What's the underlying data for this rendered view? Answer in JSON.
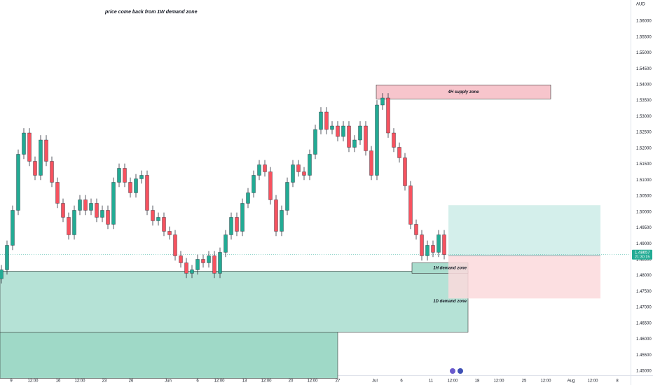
{
  "chart_data": {
    "type": "candlestick",
    "title": "price come back from 1W demand zone",
    "currency": "AUD",
    "xlim": [
      0,
      270
    ],
    "ylim": [
      1.4478,
      1.5666
    ],
    "yticks": [
      {
        "value": 1.45,
        "label": "1.45000"
      },
      {
        "value": 1.455,
        "label": "1.45500"
      },
      {
        "value": 1.46,
        "label": "1.46000"
      },
      {
        "value": 1.465,
        "label": "1.46500"
      },
      {
        "value": 1.47,
        "label": "1.47000"
      },
      {
        "value": 1.475,
        "label": "1.47500"
      },
      {
        "value": 1.48,
        "label": "1.48000"
      },
      {
        "value": 1.485,
        "label": "1.48500"
      },
      {
        "value": 1.49,
        "label": "1.49000"
      },
      {
        "value": 1.495,
        "label": "1.49500"
      },
      {
        "value": 1.5,
        "label": "1.50000"
      },
      {
        "value": 1.505,
        "label": "1.50500"
      },
      {
        "value": 1.51,
        "label": "1.51000"
      },
      {
        "value": 1.515,
        "label": "1.51500"
      },
      {
        "value": 1.52,
        "label": "1.52000"
      },
      {
        "value": 1.525,
        "label": "1.52500"
      },
      {
        "value": 1.53,
        "label": "1.53000"
      },
      {
        "value": 1.535,
        "label": "1.53500"
      },
      {
        "value": 1.54,
        "label": "1.54000"
      },
      {
        "value": 1.545,
        "label": "1.54500"
      },
      {
        "value": 1.55,
        "label": "1.55000"
      },
      {
        "value": 1.555,
        "label": "1.55500"
      },
      {
        "value": 1.56,
        "label": "1.56000"
      }
    ],
    "xticks": [
      {
        "value": 4.8,
        "label": "9"
      },
      {
        "value": 14.1,
        "label": "12:00"
      },
      {
        "value": 24.9,
        "label": "16"
      },
      {
        "value": 34.2,
        "label": "12:00"
      },
      {
        "value": 44.7,
        "label": "23"
      },
      {
        "value": 56.1,
        "label": "26"
      },
      {
        "value": 72,
        "label": "Jun"
      },
      {
        "value": 84.6,
        "label": "6"
      },
      {
        "value": 93.9,
        "label": "12:00"
      },
      {
        "value": 104.7,
        "label": "13"
      },
      {
        "value": 114,
        "label": "12:00"
      },
      {
        "value": 124.5,
        "label": "20"
      },
      {
        "value": 133.8,
        "label": "12:00"
      },
      {
        "value": 144.6,
        "label": "27"
      },
      {
        "value": 160.5,
        "label": "Jul"
      },
      {
        "value": 171.9,
        "label": "6"
      },
      {
        "value": 184.5,
        "label": "11"
      },
      {
        "value": 193.8,
        "label": "12:00"
      },
      {
        "value": 204.3,
        "label": "18"
      },
      {
        "value": 213.6,
        "label": "12:00"
      },
      {
        "value": 224.4,
        "label": "25"
      },
      {
        "value": 233.7,
        "label": "12:00"
      },
      {
        "value": 244.5,
        "label": "Aug"
      },
      {
        "value": 253.8,
        "label": "12:00"
      },
      {
        "value": 264.3,
        "label": "8"
      }
    ],
    "up_color": "#22ab94",
    "down_color": "#f7525f",
    "x": [
      0.6,
      3,
      5.4,
      7.8,
      10.2,
      12.6,
      15,
      17.4,
      19.8,
      22.2,
      24.6,
      27,
      29.4,
      31.8,
      34.2,
      36.6,
      39,
      41.4,
      43.8,
      46.2,
      48.6,
      51,
      53.4,
      55.8,
      58.2,
      60.6,
      63,
      65.4,
      67.8,
      70.2,
      72.6,
      75,
      77.4,
      79.8,
      82.2,
      84.6,
      87,
      89.4,
      91.8,
      94.2,
      96.6,
      99,
      101.4,
      103.8,
      106.2,
      108.6,
      111,
      113.4,
      115.8,
      118.2,
      120.6,
      123,
      125.4,
      127.8,
      130.2,
      132.6,
      135,
      137.4,
      139.8,
      142.2,
      144.6,
      147,
      149.4,
      151.8,
      154.2,
      156.6,
      159,
      161.4,
      163.8,
      166.2,
      168.6,
      171,
      173.4,
      175.8,
      178.2,
      180.6,
      183,
      185.4,
      187.8,
      190.2
    ],
    "open": [
      1.479,
      1.4818,
      1.4895,
      1.5005,
      1.5181,
      1.5248,
      1.5159,
      1.5115,
      1.5226,
      1.5159,
      1.5093,
      1.5027,
      1.4983,
      1.4928,
      1.5005,
      1.5038,
      1.5005,
      1.5027,
      1.4983,
      1.5005,
      1.4961,
      1.5093,
      1.5137,
      1.5093,
      1.506,
      1.5104,
      1.5115,
      1.5005,
      1.4972,
      1.4983,
      1.4939,
      1.4928,
      1.4862,
      1.484,
      1.4807,
      1.4818,
      1.4851,
      1.484,
      1.4862,
      1.4807,
      1.4873,
      1.4928,
      1.4983,
      1.4939,
      1.5027,
      1.506,
      1.5115,
      1.5148,
      1.5126,
      1.5038,
      1.4939,
      1.5005,
      1.5093,
      1.5148,
      1.5126,
      1.5115,
      1.5181,
      1.5259,
      1.5314,
      1.5259,
      1.527,
      1.5237,
      1.527,
      1.5203,
      1.5226,
      1.527,
      1.5192,
      1.5115,
      1.5336,
      1.5358,
      1.5248,
      1.5203,
      1.517,
      1.5082,
      1.4961,
      1.4928,
      1.4862,
      1.4895,
      1.4873,
      1.4928
    ],
    "high": [
      1.4833,
      1.491,
      1.502,
      1.5196,
      1.5263,
      1.5263,
      1.5174,
      1.5241,
      1.5241,
      1.5174,
      1.5108,
      1.5042,
      1.4998,
      1.502,
      1.5053,
      1.5053,
      1.5042,
      1.5042,
      1.502,
      1.502,
      1.5108,
      1.5152,
      1.5152,
      1.5108,
      1.5119,
      1.513,
      1.513,
      1.502,
      1.4998,
      1.4998,
      1.4954,
      1.4943,
      1.4877,
      1.4855,
      1.4833,
      1.4866,
      1.4866,
      1.4877,
      1.4877,
      1.4888,
      1.4943,
      1.4998,
      1.4998,
      1.5042,
      1.5075,
      1.513,
      1.5163,
      1.5163,
      1.5141,
      1.5053,
      1.502,
      1.5108,
      1.5163,
      1.5163,
      1.5141,
      1.5196,
      1.5274,
      1.5329,
      1.5329,
      1.5285,
      1.5285,
      1.5285,
      1.5285,
      1.5241,
      1.5285,
      1.5285,
      1.5207,
      1.5351,
      1.5373,
      1.5373,
      1.5263,
      1.5218,
      1.5185,
      1.5097,
      1.4976,
      1.4943,
      1.491,
      1.491,
      1.4943,
      1.4943
    ],
    "low": [
      1.4775,
      1.4803,
      1.488,
      1.499,
      1.5166,
      1.5144,
      1.51,
      1.51,
      1.5144,
      1.5078,
      1.5012,
      1.4968,
      1.4913,
      1.4913,
      1.499,
      1.499,
      1.499,
      1.4968,
      1.4968,
      1.4946,
      1.4946,
      1.5078,
      1.5078,
      1.5045,
      1.5045,
      1.5089,
      1.499,
      1.4957,
      1.4957,
      1.4924,
      1.4913,
      1.4847,
      1.4825,
      1.4792,
      1.4792,
      1.4803,
      1.4825,
      1.4825,
      1.4792,
      1.4792,
      1.4858,
      1.4913,
      1.4924,
      1.4924,
      1.5012,
      1.5045,
      1.51,
      1.5111,
      1.5023,
      1.4924,
      1.4924,
      1.499,
      1.5078,
      1.5111,
      1.51,
      1.51,
      1.5166,
      1.5244,
      1.5244,
      1.5244,
      1.5222,
      1.5222,
      1.5188,
      1.5188,
      1.5211,
      1.5177,
      1.51,
      1.51,
      1.5321,
      1.5233,
      1.5188,
      1.5155,
      1.5067,
      1.4946,
      1.4913,
      1.4847,
      1.4847,
      1.4858,
      1.4858,
      1.4851
    ],
    "close": [
      1.4818,
      1.4895,
      1.5005,
      1.5181,
      1.5248,
      1.5159,
      1.5115,
      1.5226,
      1.5159,
      1.5093,
      1.5027,
      1.4983,
      1.4928,
      1.5005,
      1.5038,
      1.5005,
      1.5027,
      1.4983,
      1.5005,
      1.4961,
      1.5093,
      1.5137,
      1.5093,
      1.506,
      1.5104,
      1.5115,
      1.5005,
      1.4972,
      1.4983,
      1.4939,
      1.4928,
      1.4862,
      1.484,
      1.4807,
      1.4818,
      1.4851,
      1.484,
      1.4862,
      1.4807,
      1.4873,
      1.4928,
      1.4983,
      1.4939,
      1.5027,
      1.506,
      1.5115,
      1.5148,
      1.5126,
      1.5038,
      1.4939,
      1.5005,
      1.5093,
      1.5148,
      1.5126,
      1.5115,
      1.5181,
      1.5259,
      1.5314,
      1.5259,
      1.527,
      1.5237,
      1.527,
      1.5203,
      1.5226,
      1.527,
      1.5192,
      1.5115,
      1.5336,
      1.5358,
      1.5248,
      1.5203,
      1.517,
      1.5082,
      1.4961,
      1.4928,
      1.4862,
      1.4895,
      1.4873,
      1.4928,
      1.4866
    ],
    "zones": [
      {
        "x": [
          0,
          144.6
        ],
        "y": [
          1.4477,
          1.4659
        ],
        "color": "#9fd9c7"
      },
      {
        "label": "1D demand zone",
        "x": [
          0,
          200.4
        ],
        "y": [
          1.4622,
          1.4814
        ],
        "color": "#b5e2d6"
      },
      {
        "label": "1H demand zone",
        "x": [
          176.4,
          200.4
        ],
        "y": [
          1.4807,
          1.484
        ],
        "color": "#a9dccd"
      },
      {
        "label": "4H supply zone",
        "x": [
          161.1,
          235.8
        ],
        "y": [
          1.5355,
          1.5399
        ],
        "color": "#f7c5cc"
      }
    ],
    "position": {
      "x": [
        192,
        257.1
      ],
      "entry": 1.4862,
      "target": 1.5021,
      "stop": 1.4728,
      "target_color": "#cdece7",
      "stop_color": "#fbd9dc"
    },
    "last_price": {
      "value": 1.48657,
      "label": "1.48657",
      "countdown": "21:30:15",
      "color": "#22ab94"
    }
  }
}
